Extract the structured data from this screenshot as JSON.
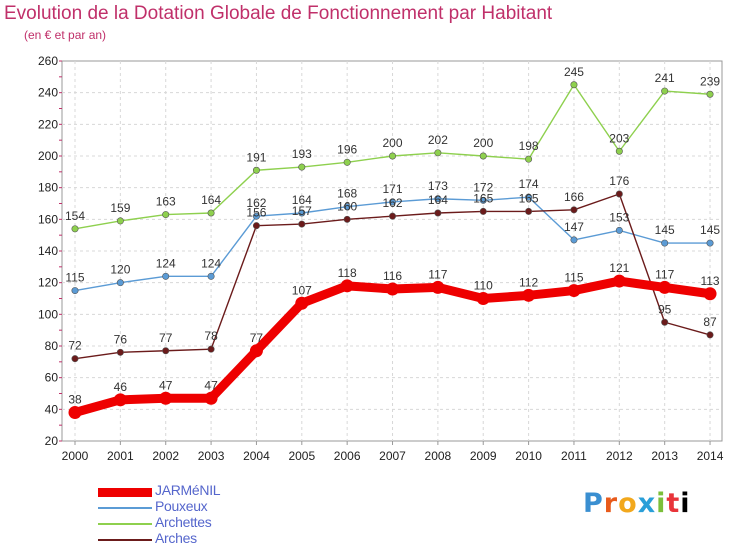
{
  "header": {
    "title": "Evolution de la Dotation Globale de Fonctionnement par Habitant",
    "subtitle": "(en € et par an)"
  },
  "logo": {
    "text": "Proxiti"
  },
  "chart_data": {
    "type": "line",
    "title": "Evolution de la Dotation Globale de Fonctionnement par Habitant",
    "subtitle": "(en € et par an)",
    "xlabel": "",
    "ylabel": "",
    "ylim": [
      20,
      260
    ],
    "yticks": [
      20,
      40,
      60,
      80,
      100,
      120,
      140,
      160,
      180,
      200,
      220,
      240,
      260
    ],
    "grid": true,
    "legend_position": "bottom-left",
    "x": [
      "2000",
      "2001",
      "2002",
      "2003",
      "2004",
      "2005",
      "2006",
      "2007",
      "2008",
      "2009",
      "2010",
      "2011",
      "2012",
      "2013",
      "2014"
    ],
    "series": [
      {
        "name": "JARMéNIL",
        "color": "#ee0000",
        "values": [
          38,
          46,
          47,
          47,
          77,
          107,
          118,
          116,
          117,
          110,
          112,
          115,
          121,
          117,
          113
        ]
      },
      {
        "name": "Pouxeux",
        "color": "#5b9bd5",
        "values": [
          115,
          120,
          124,
          124,
          162,
          164,
          168,
          171,
          173,
          172,
          174,
          147,
          153,
          145,
          145
        ]
      },
      {
        "name": "Archettes",
        "color": "#8ed04e",
        "values": [
          154,
          159,
          163,
          164,
          191,
          193,
          196,
          200,
          202,
          200,
          198,
          245,
          203,
          241,
          239
        ]
      },
      {
        "name": "Arches",
        "color": "#6b1b1b",
        "values": [
          72,
          76,
          77,
          78,
          156,
          157,
          160,
          162,
          164,
          165,
          165,
          166,
          176,
          95,
          87
        ]
      }
    ]
  }
}
